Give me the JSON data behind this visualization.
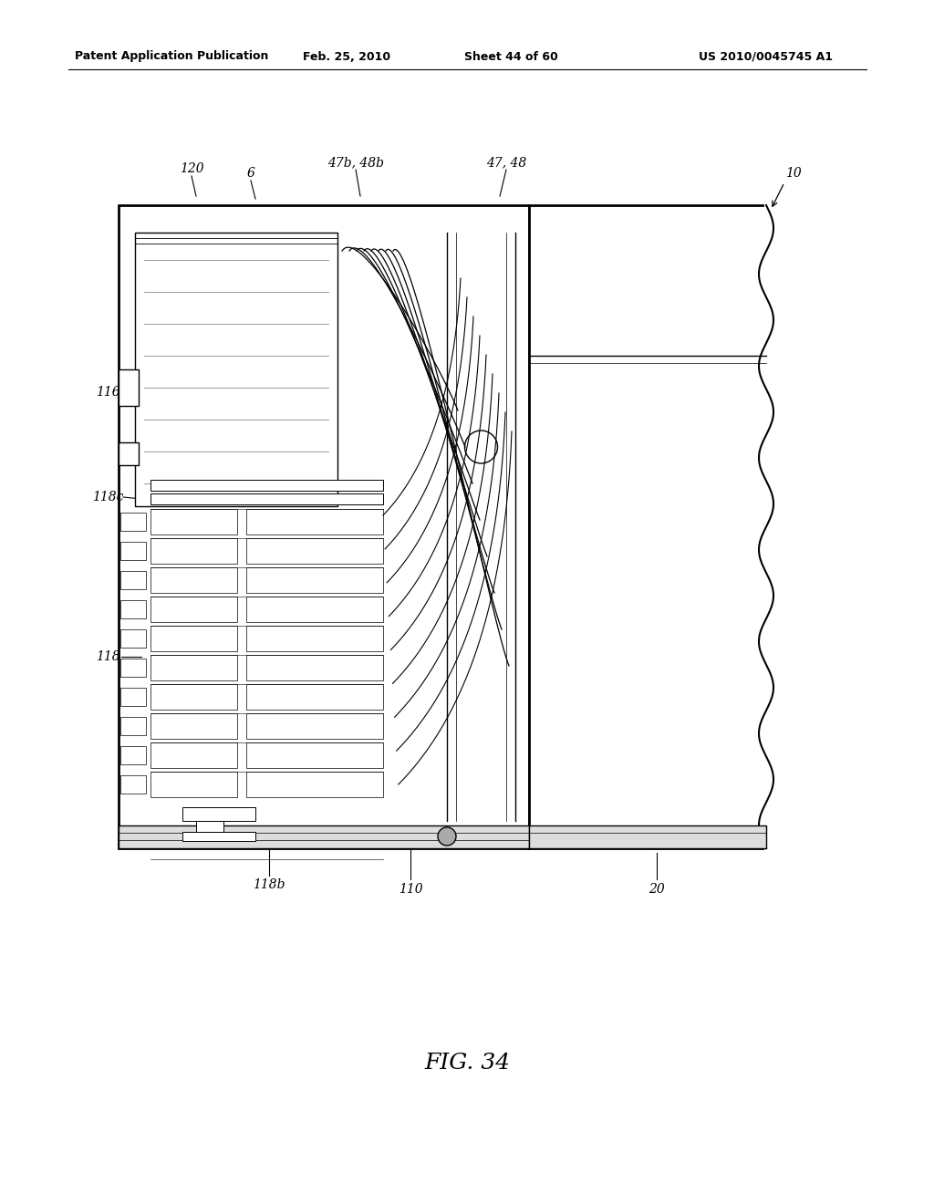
{
  "bg_color": "#ffffff",
  "header_text": "Patent Application Publication",
  "header_date": "Feb. 25, 2010",
  "header_sheet": "Sheet 44 of 60",
  "header_patent": "US 2010/0045745 A1",
  "figure_label": "FIG. 34"
}
